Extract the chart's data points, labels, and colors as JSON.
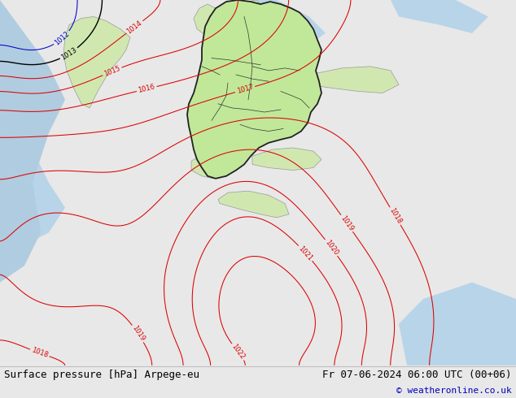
{
  "title_left": "Surface pressure [hPa] Arpege-eu",
  "title_right": "Fr 07-06-2024 06:00 UTC (00+06)",
  "copyright": "© weatheronline.co.uk",
  "bg_land": "#c8e8a0",
  "bg_ocean": "#b8d4e8",
  "bg_bar": "#e8e8e8",
  "color_red": "#dd0000",
  "color_black": "#000000",
  "color_blue": "#0000cc",
  "color_gray_border": "#999999",
  "color_de_border": "#222222",
  "color_copyright": "#0000bb",
  "font_size_bottom": 9,
  "font_size_copyright": 8,
  "font_size_label": 6
}
